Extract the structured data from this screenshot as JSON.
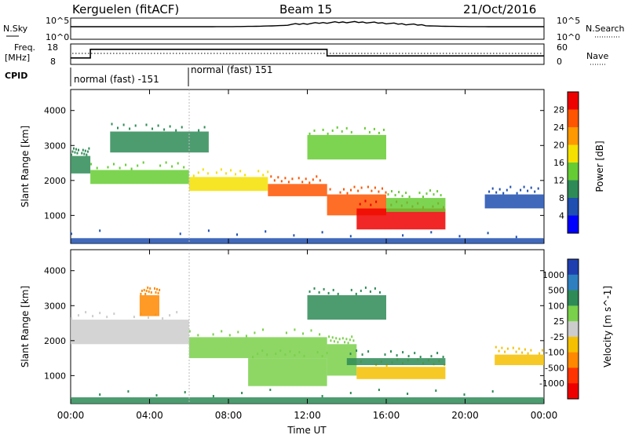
{
  "header": {
    "station": "Kerguelen (fitACF)",
    "beam": "Beam 15",
    "date": "21/Oct/2016"
  },
  "panels": {
    "nsky_label": "N.Sky",
    "nsearch_label": "N.Search",
    "freq_label": "Freq.",
    "freq_unit": "[MHz]",
    "nave_label": "Nave",
    "cpid_label": "CPID",
    "nsky_ticks": [
      "10^5",
      "10^0"
    ],
    "nsearch_ticks": [
      "10^5",
      "10^0"
    ],
    "freq_ticks": [
      "18",
      "8"
    ],
    "nave_ticks": [
      "60",
      "0"
    ],
    "cpid_segments": [
      {
        "start": 0,
        "end": 6,
        "label": "normal (fast) -151"
      },
      {
        "start": 6,
        "end": 24,
        "label": "normal (fast) 151"
      }
    ],
    "freq_steps": [
      {
        "from": 0,
        "to": 1,
        "level": 0.28
      },
      {
        "from": 1,
        "to": 13,
        "level": 0.78
      },
      {
        "from": 13,
        "to": 24,
        "level": 0.4
      }
    ]
  },
  "chart_data": [
    {
      "type": "heatmap",
      "title": "",
      "xlabel": "Time UT",
      "ylabel": "Slant Range [km]",
      "xlim": [
        0,
        24
      ],
      "ylim": [
        200,
        4600
      ],
      "x_ticks": [
        "00:00",
        "04:00",
        "08:00",
        "12:00",
        "16:00",
        "20:00",
        "00:00"
      ],
      "y_ticks": [
        1000,
        2000,
        3000,
        4000
      ],
      "colorbar": {
        "label": "Power [dB]",
        "ticks": [
          4,
          8,
          12,
          16,
          20,
          24,
          28
        ],
        "colors": [
          "#0000ff",
          "#1f4fb0",
          "#2e8b57",
          "#66cc33",
          "#f5e000",
          "#ff9900",
          "#ff5500",
          "#ee0000"
        ]
      },
      "regions": [
        {
          "t0": 0.0,
          "t1": 1.0,
          "r0": 2200,
          "r1": 2700,
          "level": 8
        },
        {
          "t0": 1.0,
          "t1": 6.0,
          "r0": 1900,
          "r1": 2300,
          "level": 12
        },
        {
          "t0": 6.0,
          "t1": 10.0,
          "r0": 1700,
          "r1": 2100,
          "level": 16
        },
        {
          "t0": 10.0,
          "t1": 13.0,
          "r0": 1550,
          "r1": 1900,
          "level": 26
        },
        {
          "t0": 13.0,
          "t1": 16.0,
          "r0": 1000,
          "r1": 1600,
          "level": 24
        },
        {
          "t0": 14.5,
          "t1": 19.0,
          "r0": 600,
          "r1": 1200,
          "level": 28
        },
        {
          "t0": 16.0,
          "t1": 19.0,
          "r0": 1100,
          "r1": 1500,
          "level": 12
        },
        {
          "t0": 12.0,
          "t1": 16.0,
          "r0": 2600,
          "r1": 3300,
          "level": 14
        },
        {
          "t0": 2.0,
          "t1": 7.0,
          "r0": 2800,
          "r1": 3400,
          "level": 8
        },
        {
          "t0": 21.0,
          "t1": 24.0,
          "r0": 1200,
          "r1": 1600,
          "level": 6
        },
        {
          "t0": 0.0,
          "t1": 24.0,
          "r0": 200,
          "r1": 350,
          "level": 4
        }
      ]
    },
    {
      "type": "heatmap",
      "title": "",
      "xlabel": "Time UT",
      "ylabel": "Slant Range [km]",
      "xlim": [
        0,
        24
      ],
      "ylim": [
        200,
        4600
      ],
      "x_ticks": [
        "00:00",
        "04:00",
        "08:00",
        "12:00",
        "16:00",
        "20:00",
        "00:00"
      ],
      "y_ticks": [
        1000,
        2000,
        3000,
        4000
      ],
      "colorbar": {
        "label": "Velocity [m s^-1]",
        "ticks": [
          "1000",
          "500",
          "100",
          "25",
          "-25",
          "-100",
          "-500",
          "-1000"
        ],
        "colors": [
          "#1f3fb0",
          "#2e7fc0",
          "#2e8b57",
          "#7ad04a",
          "#cccccc",
          "#f5c000",
          "#ff8800",
          "#ff3300",
          "#ee0000"
        ]
      },
      "regions": [
        {
          "t0": 0.0,
          "t1": 6.0,
          "r0": 1900,
          "r1": 2600,
          "level": "-25"
        },
        {
          "t0": 6.0,
          "t1": 13.0,
          "r0": 1500,
          "r1": 2100,
          "level": "25"
        },
        {
          "t0": 9.0,
          "t1": 13.0,
          "r0": 700,
          "r1": 1500,
          "level": "25"
        },
        {
          "t0": 13.0,
          "t1": 14.5,
          "r0": 1000,
          "r1": 1900,
          "level": "25"
        },
        {
          "t0": 14.5,
          "t1": 19.0,
          "r0": 900,
          "r1": 1250,
          "level": "-100"
        },
        {
          "t0": 14.0,
          "t1": 19.0,
          "r0": 1300,
          "r1": 1500,
          "level": "100"
        },
        {
          "t0": 12.0,
          "t1": 16.0,
          "r0": 2600,
          "r1": 3300,
          "level": "100"
        },
        {
          "t0": 3.5,
          "t1": 4.5,
          "r0": 2700,
          "r1": 3300,
          "level": "-500"
        },
        {
          "t0": 21.5,
          "t1": 24.0,
          "r0": 1300,
          "r1": 1600,
          "level": "-100"
        },
        {
          "t0": 0.0,
          "t1": 24.0,
          "r0": 200,
          "r1": 380,
          "level": "100"
        }
      ]
    }
  ]
}
